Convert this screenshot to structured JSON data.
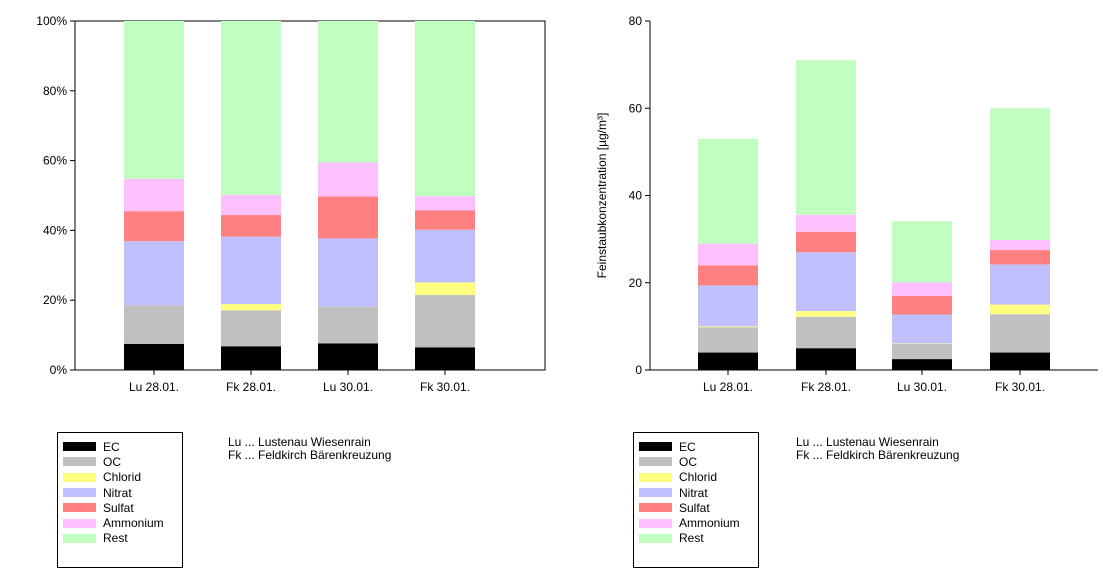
{
  "components": [
    {
      "name": "EC",
      "color": "#000000"
    },
    {
      "name": "OC",
      "color": "#c0c0c0"
    },
    {
      "name": "Chlorid",
      "color": "#ffff80"
    },
    {
      "name": "Nitrat",
      "color": "#c0c0ff"
    },
    {
      "name": "Sulfat",
      "color": "#ff8080"
    },
    {
      "name": "Ammonium",
      "color": "#ffc0ff"
    },
    {
      "name": "Rest",
      "color": "#c0ffc0"
    }
  ],
  "notes": {
    "line1": "Lu ... Lustenau Wiesenrain",
    "line2": "Fk ... Feldkirch Bärenkreuzung"
  },
  "chart_data": [
    {
      "type": "bar",
      "stacked": true,
      "percent": true,
      "categories": [
        "Lu 28.01.",
        "Fk 28.01.",
        "Lu 30.01.",
        "Fk 30.01."
      ],
      "series": [
        {
          "name": "EC",
          "values": [
            7.5,
            6.8,
            7.6,
            6.5
          ]
        },
        {
          "name": "OC",
          "values": [
            11.0,
            10.3,
            10.5,
            15.0
          ]
        },
        {
          "name": "Chlorid",
          "values": [
            0,
            1.8,
            0,
            3.6
          ]
        },
        {
          "name": "Nitrat",
          "values": [
            18.4,
            19.3,
            19.6,
            15.1
          ]
        },
        {
          "name": "Sulfat",
          "values": [
            8.6,
            6.2,
            12.0,
            5.5
          ]
        },
        {
          "name": "Ammonium",
          "values": [
            9.3,
            5.8,
            9.8,
            4.1
          ]
        },
        {
          "name": "Rest",
          "values": [
            45.2,
            49.8,
            40.5,
            50.2
          ]
        }
      ],
      "ylim": [
        0,
        100
      ],
      "yticks": [
        "0%",
        "20%",
        "40%",
        "60%",
        "80%",
        "100%"
      ],
      "ylabel": "",
      "xlabel": "",
      "grid": false
    },
    {
      "type": "bar",
      "stacked": true,
      "categories": [
        "Lu 28.01.",
        "Fk 28.01.",
        "Lu 30.01.",
        "Fk 30.01."
      ],
      "series": [
        {
          "name": "EC",
          "values": [
            4.0,
            5.0,
            2.5,
            4.0
          ]
        },
        {
          "name": "OC",
          "values": [
            5.8,
            7.2,
            3.5,
            8.8
          ]
        },
        {
          "name": "Chlorid",
          "values": [
            0.2,
            1.3,
            0.1,
            2.2
          ]
        },
        {
          "name": "Nitrat",
          "values": [
            9.4,
            13.5,
            6.6,
            9.2
          ]
        },
        {
          "name": "Sulfat",
          "values": [
            4.6,
            4.7,
            4.3,
            3.3
          ]
        },
        {
          "name": "Ammonium",
          "values": [
            5.0,
            3.9,
            3.1,
            2.3
          ]
        },
        {
          "name": "Rest",
          "values": [
            24.0,
            35.4,
            14.0,
            30.2
          ]
        }
      ],
      "ylim": [
        0,
        80
      ],
      "yticks": [
        "0",
        "20",
        "40",
        "60",
        "80"
      ],
      "ylabel": "Feinstaubkonzentration [µg/m³]",
      "xlabel": "",
      "grid": false
    }
  ]
}
